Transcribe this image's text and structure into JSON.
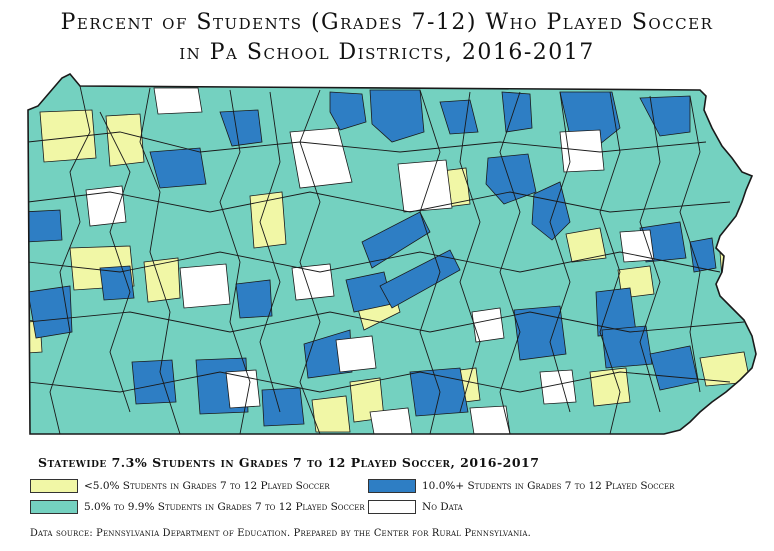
{
  "title": {
    "line1": "Percent of Students (Grades 7-12) Who Played Soccer",
    "line2": "in Pa School Districts, 2016-2017"
  },
  "statewide": "Statewide 7.3% Students in Grades 7 to 12 Played Soccer, 2016-2017",
  "legend": [
    {
      "label": "<5.0% Students in Grades 7 to 12 Played Soccer",
      "color": "#f1f7a6"
    },
    {
      "label": "10.0%+ Students in Grades 7 to 12 Played Soccer",
      "color": "#2e7ec4"
    },
    {
      "label": "5.0% to 9.9% Students in Grades 7 to 12 Played Soccer",
      "color": "#74d1c0"
    },
    {
      "label": "No Data",
      "color": "#ffffff"
    }
  ],
  "source": "Data source: Pennsylvania Department of Education.  Prepared by the Center for Rural Pennsylvania.",
  "colors": {
    "low": "#f1f7a6",
    "mid": "#74d1c0",
    "high": "#2e7ec4",
    "nodata": "#ffffff",
    "border": "#1a1a1a"
  }
}
